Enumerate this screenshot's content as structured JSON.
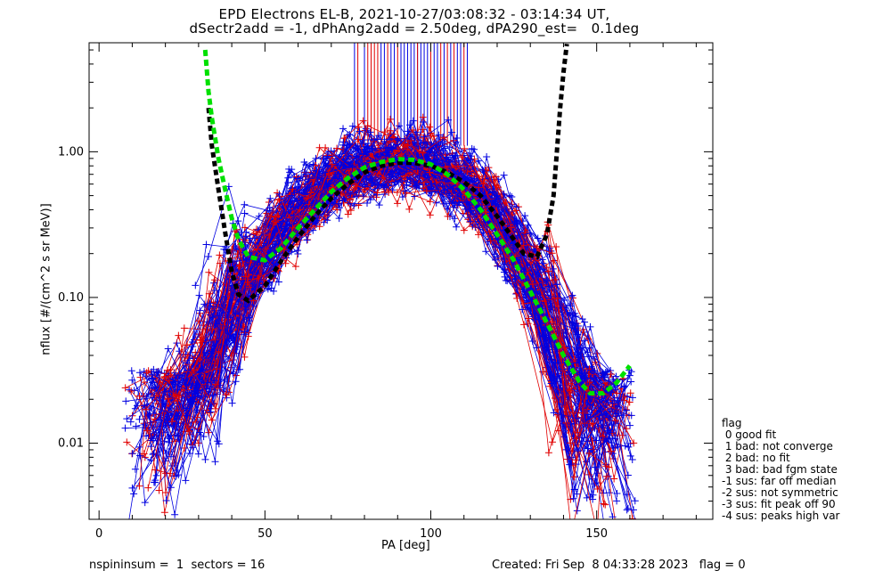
{
  "chart_data": {
    "type": "scatter",
    "title_line1": "EPD Electrons EL-B, 2021-10-27/03:08:32 - 03:14:34 UT,",
    "title_line2": "dSectr2add = -1, dPhAng2add = 2.50deg, dPA290_est=   0.1deg",
    "xlabel": "PA [deg]",
    "ylabel": "nflux [#/(cm^2 s sr MeV)]",
    "xlim": [
      -3,
      185
    ],
    "ylim": [
      0.003,
      5.6
    ],
    "y_scale": "log",
    "x_ticks": [
      0,
      50,
      100,
      150
    ],
    "x_tick_labels": [
      "0",
      "50",
      "100",
      "150"
    ],
    "y_ticks": [
      0.01,
      0.1,
      1.0
    ],
    "y_tick_labels": [
      "0.01",
      "0.10",
      "1.00"
    ],
    "series_colors": {
      "red": "#e00000",
      "blue": "#0000e0",
      "green": "#00e000",
      "black": "#000000"
    },
    "curve_green_fit": [
      [
        32,
        5.0
      ],
      [
        33,
        2.6
      ],
      [
        34,
        1.7
      ],
      [
        36,
        0.9
      ],
      [
        38,
        0.55
      ],
      [
        40,
        0.35
      ],
      [
        42,
        0.25
      ],
      [
        45,
        0.19
      ],
      [
        50,
        0.18
      ],
      [
        55,
        0.22
      ],
      [
        60,
        0.3
      ],
      [
        65,
        0.4
      ],
      [
        70,
        0.53
      ],
      [
        75,
        0.66
      ],
      [
        80,
        0.78
      ],
      [
        85,
        0.85
      ],
      [
        90,
        0.89
      ],
      [
        95,
        0.88
      ],
      [
        100,
        0.82
      ],
      [
        105,
        0.7
      ],
      [
        110,
        0.55
      ],
      [
        115,
        0.4
      ],
      [
        120,
        0.27
      ],
      [
        125,
        0.18
      ],
      [
        130,
        0.11
      ],
      [
        135,
        0.067
      ],
      [
        140,
        0.04
      ],
      [
        145,
        0.026
      ],
      [
        148,
        0.022
      ],
      [
        152,
        0.022
      ],
      [
        156,
        0.026
      ],
      [
        160,
        0.034
      ]
    ],
    "curve_black_fit": [
      [
        33,
        2.0
      ],
      [
        34,
        1.1
      ],
      [
        36,
        0.55
      ],
      [
        38,
        0.28
      ],
      [
        40,
        0.15
      ],
      [
        42,
        0.105
      ],
      [
        45,
        0.095
      ],
      [
        50,
        0.12
      ],
      [
        55,
        0.18
      ],
      [
        60,
        0.26
      ],
      [
        65,
        0.36
      ],
      [
        70,
        0.48
      ],
      [
        75,
        0.6
      ],
      [
        80,
        0.72
      ],
      [
        85,
        0.8
      ],
      [
        90,
        0.84
      ],
      [
        95,
        0.84
      ],
      [
        100,
        0.8
      ],
      [
        105,
        0.72
      ],
      [
        110,
        0.62
      ],
      [
        115,
        0.5
      ],
      [
        120,
        0.36
      ],
      [
        124,
        0.27
      ],
      [
        128,
        0.2
      ],
      [
        132,
        0.19
      ],
      [
        135,
        0.27
      ],
      [
        137,
        0.5
      ],
      [
        138,
        1.0
      ],
      [
        139,
        2.0
      ],
      [
        140,
        3.5
      ],
      [
        141,
        5.5
      ]
    ],
    "ref_lines_blue_x": [
      77,
      80,
      85,
      86,
      88,
      89,
      91,
      92,
      93,
      94,
      95,
      96,
      97,
      98,
      99,
      100,
      101,
      102,
      104,
      106,
      108,
      109,
      111
    ],
    "ref_lines_red_x": [
      78,
      81,
      82,
      83,
      84,
      87,
      90,
      96,
      100,
      103,
      105,
      107,
      110
    ],
    "ref_line_ymin": 1.1,
    "note": ""
  },
  "legend": {
    "title": "flag",
    "items": [
      " 0 good fit",
      " 1 bad: not converge",
      " 2 bad: no fit",
      " 3 bad: bad fgm state",
      "-1 sus: far off median",
      "-2 sus: not symmetric",
      "-3 sus: fit peak off 90",
      "-4 sus: peaks high var"
    ]
  },
  "footer": {
    "left": "nspininsum =  1  sectors = 16",
    "right": "Created: Fri Sep  8 04:33:28 2023   flag = 0"
  }
}
